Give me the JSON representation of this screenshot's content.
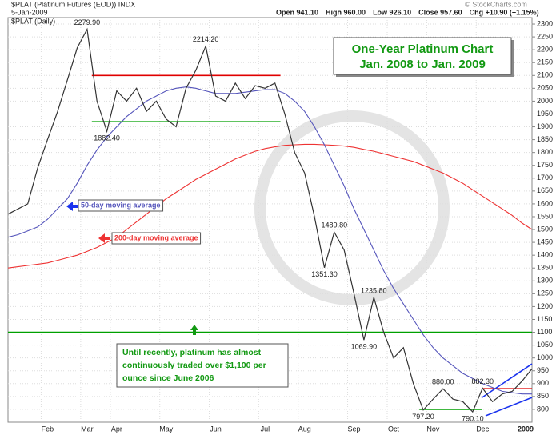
{
  "chart_data": {
    "type": "line",
    "symbol": "$PLAT (Platinum Futures (EOD)) INDX",
    "date": "5-Jan-2009",
    "quote": [
      "Open 941.10",
      "High 960.00",
      "Low 926.10",
      "Close 957.60",
      "Chg +10.90 (+1.15%)"
    ],
    "credit": "© StockCharts.com",
    "title_lines": [
      "One-Year Platinum Chart",
      "Jan. 2008 to Jan. 2009"
    ],
    "note_lines": [
      "Until recently, platinum has almost",
      "continuously traded over $1,100 per",
      "ounce since June 2006"
    ],
    "categories": [
      null,
      null,
      null,
      null,
      "Feb",
      null,
      null,
      null,
      "Mar",
      null,
      null,
      "Apr",
      null,
      null,
      null,
      null,
      "May",
      null,
      null,
      null,
      null,
      "Jun",
      null,
      null,
      null,
      null,
      "Jul",
      null,
      null,
      null,
      "Aug",
      null,
      null,
      null,
      null,
      "Sep",
      null,
      null,
      null,
      "Oct",
      null,
      null,
      null,
      "Nov",
      null,
      null,
      null,
      null,
      "Dec",
      null,
      null,
      null,
      null,
      "2009"
    ],
    "series": [
      {
        "name": "$PLAT (Daily)",
        "color": "#333333",
        "values": [
          1560,
          1580,
          1600,
          1740,
          1850,
          1958,
          2082,
          2207,
          2279.9,
          2000,
          1882.4,
          2040,
          2000,
          2050,
          1960,
          2000,
          1930,
          1900,
          2050,
          2120,
          2214.2,
          2020,
          2000,
          2070,
          2010,
          2060,
          2050,
          2070,
          1950,
          1800,
          1720,
          1550,
          1351.3,
          1489.8,
          1420,
          1250,
          1069.9,
          1235.8,
          1100,
          1000,
          1040,
          900,
          797.2,
          840,
          880,
          840,
          830,
          790.1,
          882.3,
          830,
          860,
          870,
          910,
          957.6
        ],
        "value_labels": [
          null,
          null,
          null,
          null,
          null,
          null,
          null,
          null,
          "2279.90",
          null,
          "1882.40",
          null,
          null,
          null,
          null,
          null,
          null,
          null,
          null,
          null,
          "2214.20",
          null,
          null,
          null,
          null,
          null,
          null,
          null,
          null,
          null,
          null,
          null,
          "1351.30",
          "1489.80",
          null,
          null,
          "1069.90",
          "1235.80",
          null,
          null,
          null,
          null,
          "797.20",
          null,
          "880.00",
          null,
          null,
          "790.10",
          "882.30",
          null,
          null,
          null,
          null,
          null
        ]
      },
      {
        "name": "50-day moving average",
        "color": "#5555bb",
        "values": [
          1470,
          1480,
          1495,
          1510,
          1540,
          1580,
          1620,
          1680,
          1750,
          1810,
          1860,
          1900,
          1940,
          1970,
          2000,
          2020,
          2040,
          2050,
          2055,
          2050,
          2040,
          2030,
          2030,
          2030,
          2035,
          2040,
          2045,
          2045,
          2030,
          2000,
          1960,
          1900,
          1830,
          1750,
          1670,
          1580,
          1500,
          1420,
          1340,
          1270,
          1210,
          1150,
          1090,
          1040,
          1000,
          970,
          940,
          920,
          900,
          885,
          870,
          865,
          860,
          860
        ]
      },
      {
        "name": "200-day moving average",
        "color": "#ee3333",
        "values": [
          1350,
          1355,
          1360,
          1365,
          1370,
          1380,
          1390,
          1400,
          1415,
          1430,
          1450,
          1470,
          1500,
          1530,
          1560,
          1590,
          1620,
          1645,
          1670,
          1695,
          1715,
          1735,
          1755,
          1775,
          1790,
          1805,
          1815,
          1822,
          1828,
          1830,
          1832,
          1832,
          1830,
          1828,
          1825,
          1820,
          1812,
          1805,
          1795,
          1785,
          1775,
          1765,
          1750,
          1735,
          1720,
          1700,
          1680,
          1655,
          1630,
          1605,
          1580,
          1555,
          1525,
          1500
        ]
      }
    ],
    "levels": [
      {
        "value": 2100,
        "color": "#e00000"
      },
      {
        "value": 1920,
        "color": "#00a000"
      },
      {
        "value": 1100,
        "color": "#00a000"
      },
      {
        "value": 800,
        "color": "#00a000"
      },
      {
        "value": 880,
        "color": "#e00000"
      }
    ],
    "trendlines": [
      {
        "values": [
          845,
          977
        ],
        "color": "#1a33ee"
      },
      {
        "values": [
          775,
          846
        ],
        "color": "#1a33ee"
      }
    ],
    "ylim": [
      750,
      2325
    ],
    "yticks": [
      800,
      850,
      900,
      950,
      1000,
      1050,
      1100,
      1150,
      1200,
      1250,
      1300,
      1350,
      1400,
      1450,
      1500,
      1550,
      1600,
      1650,
      1700,
      1750,
      1800,
      1850,
      1900,
      1950,
      2000,
      2050,
      2100,
      2150,
      2200,
      2250,
      2300
    ],
    "grid": true
  }
}
